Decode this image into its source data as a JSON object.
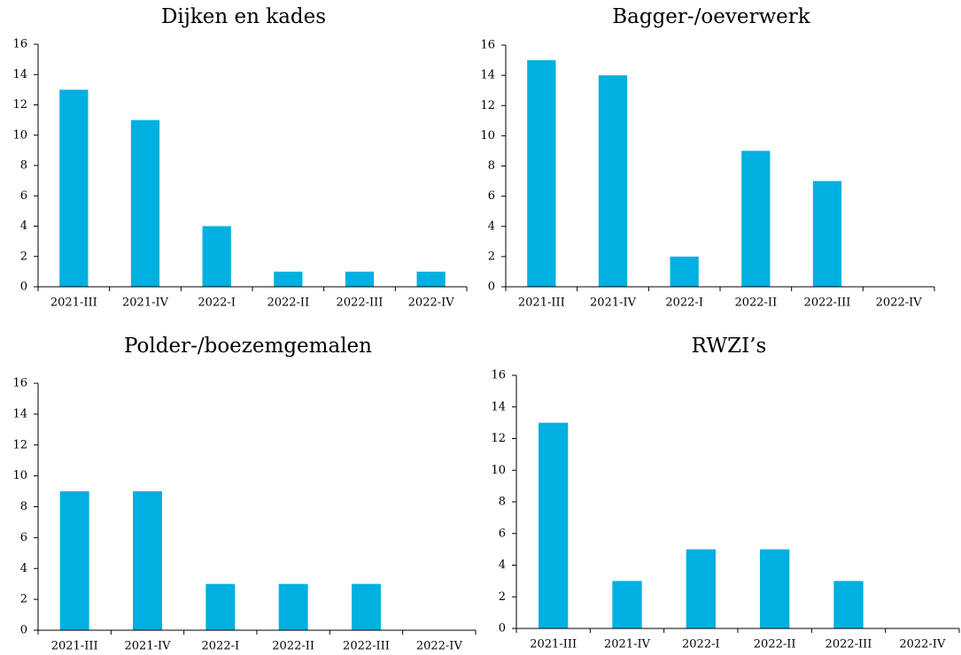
{
  "chart_data": [
    {
      "type": "bar",
      "title": "Dijken en kades",
      "categories": [
        "2021-III",
        "2021-IV",
        "2022-I",
        "2022-II",
        "2022-III",
        "2022-IV"
      ],
      "values": [
        13,
        11,
        4,
        1,
        1,
        1
      ],
      "color": "#00b0e0",
      "ylim": [
        0,
        16
      ],
      "yticks": [
        0,
        2,
        4,
        6,
        8,
        10,
        12,
        14,
        16
      ]
    },
    {
      "type": "bar",
      "title": "Bagger-/oeverwerk",
      "categories": [
        "2021-III",
        "2021-IV",
        "2022-I",
        "2022-II",
        "2022-III",
        "2022-IV"
      ],
      "values": [
        15,
        14,
        2,
        9,
        7,
        0
      ],
      "color": "#00b0e0",
      "ylim": [
        0,
        16
      ],
      "yticks": [
        0,
        2,
        4,
        6,
        8,
        10,
        12,
        14,
        16
      ]
    },
    {
      "type": "bar",
      "title": "Polder-/boezemgemalen",
      "categories": [
        "2021-III",
        "2021-IV",
        "2022-I",
        "2022-II",
        "2022-III",
        "2022-IV"
      ],
      "values": [
        9,
        9,
        3,
        3,
        3,
        0
      ],
      "color": "#00b0e0",
      "ylim": [
        0,
        16
      ],
      "yticks": [
        0,
        2,
        4,
        6,
        8,
        10,
        12,
        14,
        16
      ]
    },
    {
      "type": "bar",
      "title": "RWZI’s",
      "categories": [
        "2021-III",
        "2021-IV",
        "2022-I",
        "2022-II",
        "2022-III",
        "2022-IV"
      ],
      "values": [
        13,
        3,
        5,
        5,
        3,
        0
      ],
      "color": "#00b0e0",
      "ylim": [
        0,
        16
      ],
      "yticks": [
        0,
        2,
        4,
        6,
        8,
        10,
        12,
        14,
        16
      ]
    }
  ]
}
